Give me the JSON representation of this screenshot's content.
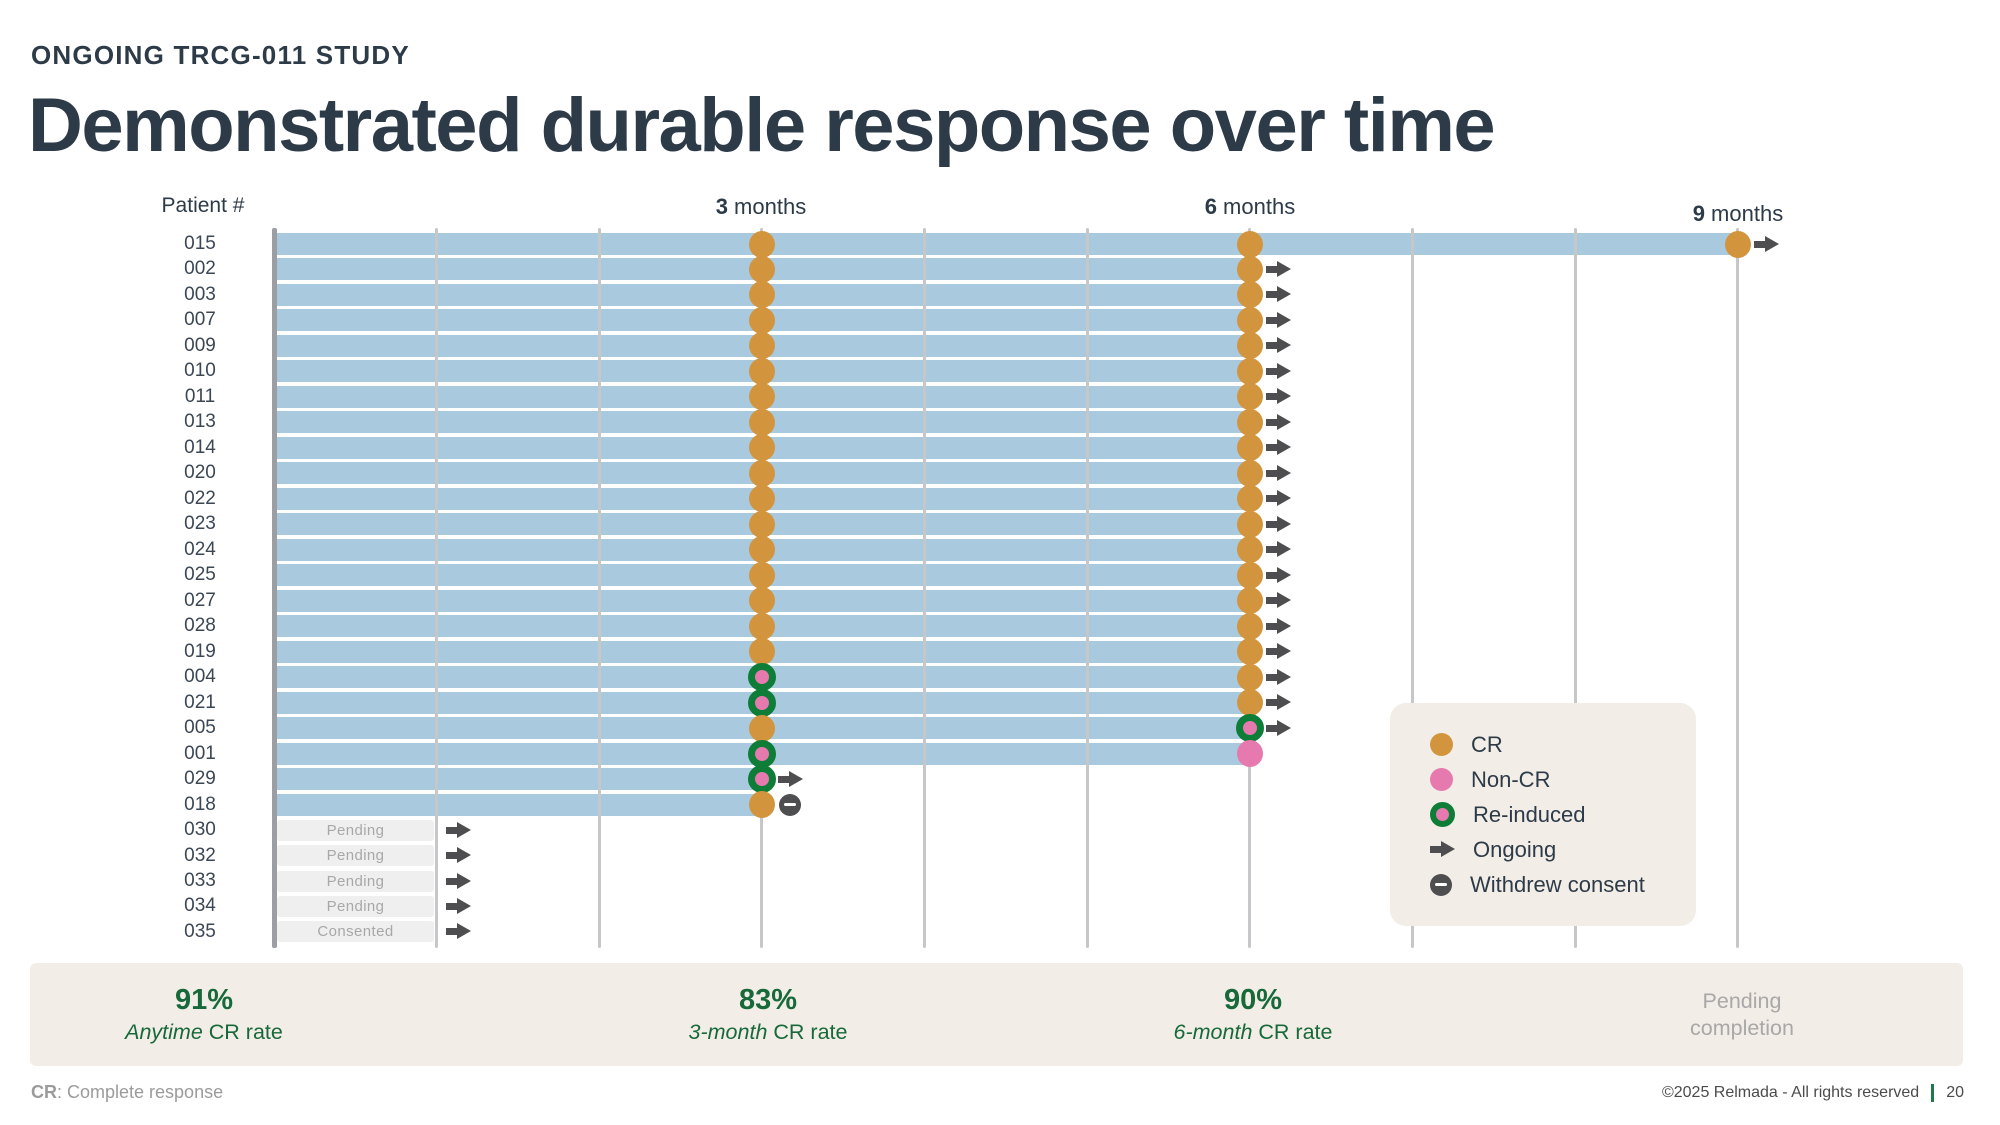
{
  "header": {
    "kicker": "ONGOING TRCG-011 STUDY",
    "title": "Demonstrated durable response over time"
  },
  "colors": {
    "bar_blue": "#a8c9de",
    "cr_orange": "#d2953e",
    "non_cr_pink": "#e679ae",
    "re_induced_green": "#0d7d37",
    "ongoing_dark": "#4e4e50",
    "stat_green": "#17693a",
    "beige_panel": "#f2ede6",
    "title_dark": "#2d3a48"
  },
  "chart_data": {
    "type": "swimmer",
    "title": "Demonstrated durable response over time",
    "col_header": "Patient #",
    "x_axis": {
      "unit": "months",
      "max_months": 9,
      "gridline_every_months": 1,
      "ticks": [
        {
          "num": "3",
          "word": "months",
          "month": 3
        },
        {
          "num": "6",
          "word": "months",
          "month": 6
        },
        {
          "num": "9",
          "word": "months",
          "month": 9
        }
      ]
    },
    "rows": [
      {
        "patient": "015",
        "bar_end_month": 9,
        "markers": [
          {
            "month": 3,
            "type": "CR"
          },
          {
            "month": 6,
            "type": "CR"
          },
          {
            "month": 9,
            "type": "CR"
          }
        ],
        "end": "ongoing"
      },
      {
        "patient": "002",
        "bar_end_month": 6,
        "markers": [
          {
            "month": 3,
            "type": "CR"
          },
          {
            "month": 6,
            "type": "CR"
          }
        ],
        "end": "ongoing"
      },
      {
        "patient": "003",
        "bar_end_month": 6,
        "markers": [
          {
            "month": 3,
            "type": "CR"
          },
          {
            "month": 6,
            "type": "CR"
          }
        ],
        "end": "ongoing"
      },
      {
        "patient": "007",
        "bar_end_month": 6,
        "markers": [
          {
            "month": 3,
            "type": "CR"
          },
          {
            "month": 6,
            "type": "CR"
          }
        ],
        "end": "ongoing"
      },
      {
        "patient": "009",
        "bar_end_month": 6,
        "markers": [
          {
            "month": 3,
            "type": "CR"
          },
          {
            "month": 6,
            "type": "CR"
          }
        ],
        "end": "ongoing"
      },
      {
        "patient": "010",
        "bar_end_month": 6,
        "markers": [
          {
            "month": 3,
            "type": "CR"
          },
          {
            "month": 6,
            "type": "CR"
          }
        ],
        "end": "ongoing"
      },
      {
        "patient": "011",
        "bar_end_month": 6,
        "markers": [
          {
            "month": 3,
            "type": "CR"
          },
          {
            "month": 6,
            "type": "CR"
          }
        ],
        "end": "ongoing"
      },
      {
        "patient": "013",
        "bar_end_month": 6,
        "markers": [
          {
            "month": 3,
            "type": "CR"
          },
          {
            "month": 6,
            "type": "CR"
          }
        ],
        "end": "ongoing"
      },
      {
        "patient": "014",
        "bar_end_month": 6,
        "markers": [
          {
            "month": 3,
            "type": "CR"
          },
          {
            "month": 6,
            "type": "CR"
          }
        ],
        "end": "ongoing"
      },
      {
        "patient": "020",
        "bar_end_month": 6,
        "markers": [
          {
            "month": 3,
            "type": "CR"
          },
          {
            "month": 6,
            "type": "CR"
          }
        ],
        "end": "ongoing"
      },
      {
        "patient": "022",
        "bar_end_month": 6,
        "markers": [
          {
            "month": 3,
            "type": "CR"
          },
          {
            "month": 6,
            "type": "CR"
          }
        ],
        "end": "ongoing"
      },
      {
        "patient": "023",
        "bar_end_month": 6,
        "markers": [
          {
            "month": 3,
            "type": "CR"
          },
          {
            "month": 6,
            "type": "CR"
          }
        ],
        "end": "ongoing"
      },
      {
        "patient": "024",
        "bar_end_month": 6,
        "markers": [
          {
            "month": 3,
            "type": "CR"
          },
          {
            "month": 6,
            "type": "CR"
          }
        ],
        "end": "ongoing"
      },
      {
        "patient": "025",
        "bar_end_month": 6,
        "markers": [
          {
            "month": 3,
            "type": "CR"
          },
          {
            "month": 6,
            "type": "CR"
          }
        ],
        "end": "ongoing"
      },
      {
        "patient": "027",
        "bar_end_month": 6,
        "markers": [
          {
            "month": 3,
            "type": "CR"
          },
          {
            "month": 6,
            "type": "CR"
          }
        ],
        "end": "ongoing"
      },
      {
        "patient": "028",
        "bar_end_month": 6,
        "markers": [
          {
            "month": 3,
            "type": "CR"
          },
          {
            "month": 6,
            "type": "CR"
          }
        ],
        "end": "ongoing"
      },
      {
        "patient": "019",
        "bar_end_month": 6,
        "markers": [
          {
            "month": 3,
            "type": "CR"
          },
          {
            "month": 6,
            "type": "CR"
          }
        ],
        "end": "ongoing"
      },
      {
        "patient": "004",
        "bar_end_month": 6,
        "markers": [
          {
            "month": 3,
            "type": "re-induced"
          },
          {
            "month": 6,
            "type": "CR"
          }
        ],
        "end": "ongoing"
      },
      {
        "patient": "021",
        "bar_end_month": 6,
        "markers": [
          {
            "month": 3,
            "type": "re-induced"
          },
          {
            "month": 6,
            "type": "CR"
          }
        ],
        "end": "ongoing"
      },
      {
        "patient": "005",
        "bar_end_month": 6,
        "markers": [
          {
            "month": 3,
            "type": "CR"
          },
          {
            "month": 6,
            "type": "re-induced"
          }
        ],
        "end": "ongoing"
      },
      {
        "patient": "001",
        "bar_end_month": 6,
        "markers": [
          {
            "month": 3,
            "type": "re-induced"
          },
          {
            "month": 6,
            "type": "non-CR"
          }
        ],
        "end": "none"
      },
      {
        "patient": "029",
        "bar_end_month": 3,
        "markers": [
          {
            "month": 3,
            "type": "re-induced"
          }
        ],
        "end": "ongoing"
      },
      {
        "patient": "018",
        "bar_end_month": 3,
        "markers": [
          {
            "month": 3,
            "type": "CR"
          }
        ],
        "end": "withdrew"
      },
      {
        "patient": "030",
        "status_box": "Pending",
        "end": "ongoing"
      },
      {
        "patient": "032",
        "status_box": "Pending",
        "end": "ongoing"
      },
      {
        "patient": "033",
        "status_box": "Pending",
        "end": "ongoing"
      },
      {
        "patient": "034",
        "status_box": "Pending",
        "end": "ongoing"
      },
      {
        "patient": "035",
        "status_box": "Consented",
        "end": "ongoing"
      }
    ],
    "legend": [
      {
        "type": "CR",
        "label": "CR"
      },
      {
        "type": "non-CR",
        "label": "Non-CR"
      },
      {
        "type": "re-induced",
        "label": "Re-induced"
      },
      {
        "type": "ongoing",
        "label": "Ongoing"
      },
      {
        "type": "withdrew",
        "label": "Withdrew consent"
      }
    ]
  },
  "stats": [
    {
      "value": "91%",
      "italic": "Anytime",
      "rest": "CR rate"
    },
    {
      "value": "83%",
      "italic": "3-month",
      "rest": "CR rate"
    },
    {
      "value": "90%",
      "italic": "6-month",
      "rest": "CR rate"
    },
    {
      "line1": "Pending",
      "line2": "completion"
    }
  ],
  "footer": {
    "term": "CR",
    "definition": ": Complete response",
    "copyright": "©2025 Relmada - All rights reserved",
    "page": "20"
  }
}
